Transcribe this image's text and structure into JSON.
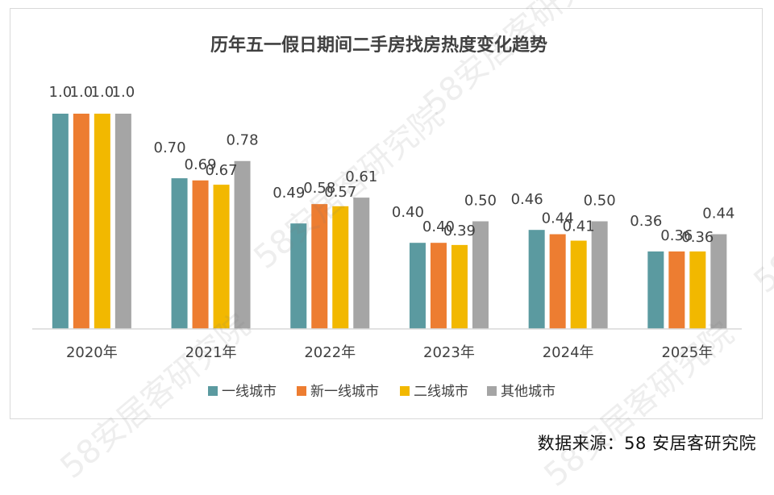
{
  "chart_data": {
    "type": "bar",
    "title": "历年五一假日期间二手房找房热度变化趋势",
    "categories": [
      "2020年",
      "2021年",
      "2022年",
      "2023年",
      "2024年",
      "2025年"
    ],
    "series": [
      {
        "name": "一线城市",
        "color": "#5b9aa0",
        "values": [
          1.0,
          0.7,
          0.49,
          0.4,
          0.46,
          0.36
        ]
      },
      {
        "name": "新一线城市",
        "color": "#ed7d31",
        "values": [
          1.0,
          0.69,
          0.58,
          0.4,
          0.44,
          0.36
        ]
      },
      {
        "name": "二线城市",
        "color": "#f2b800",
        "values": [
          1.0,
          0.67,
          0.57,
          0.39,
          0.41,
          0.36
        ]
      },
      {
        "name": "其他城市",
        "color": "#a5a5a5",
        "values": [
          1.0,
          0.78,
          0.61,
          0.5,
          0.5,
          0.44
        ]
      }
    ],
    "data_labels": [
      [
        "1.0",
        "0.70",
        "0.49",
        "0.40",
        "0.46",
        "0.36"
      ],
      [
        "1.0",
        "0.69",
        "0.58",
        "0.40",
        "0.44",
        "0.36"
      ],
      [
        "1.0",
        "0.67",
        "0.57",
        "0.39",
        "0.41",
        "0.36"
      ],
      [
        "1.0",
        "0.78",
        "0.61",
        "0.50",
        "0.50",
        "0.44"
      ]
    ],
    "ylim": [
      0,
      1.0
    ],
    "grid": false,
    "legend_position": "bottom"
  },
  "source": "数据来源：58 安居客研究院",
  "watermark": "58安居客研究院"
}
